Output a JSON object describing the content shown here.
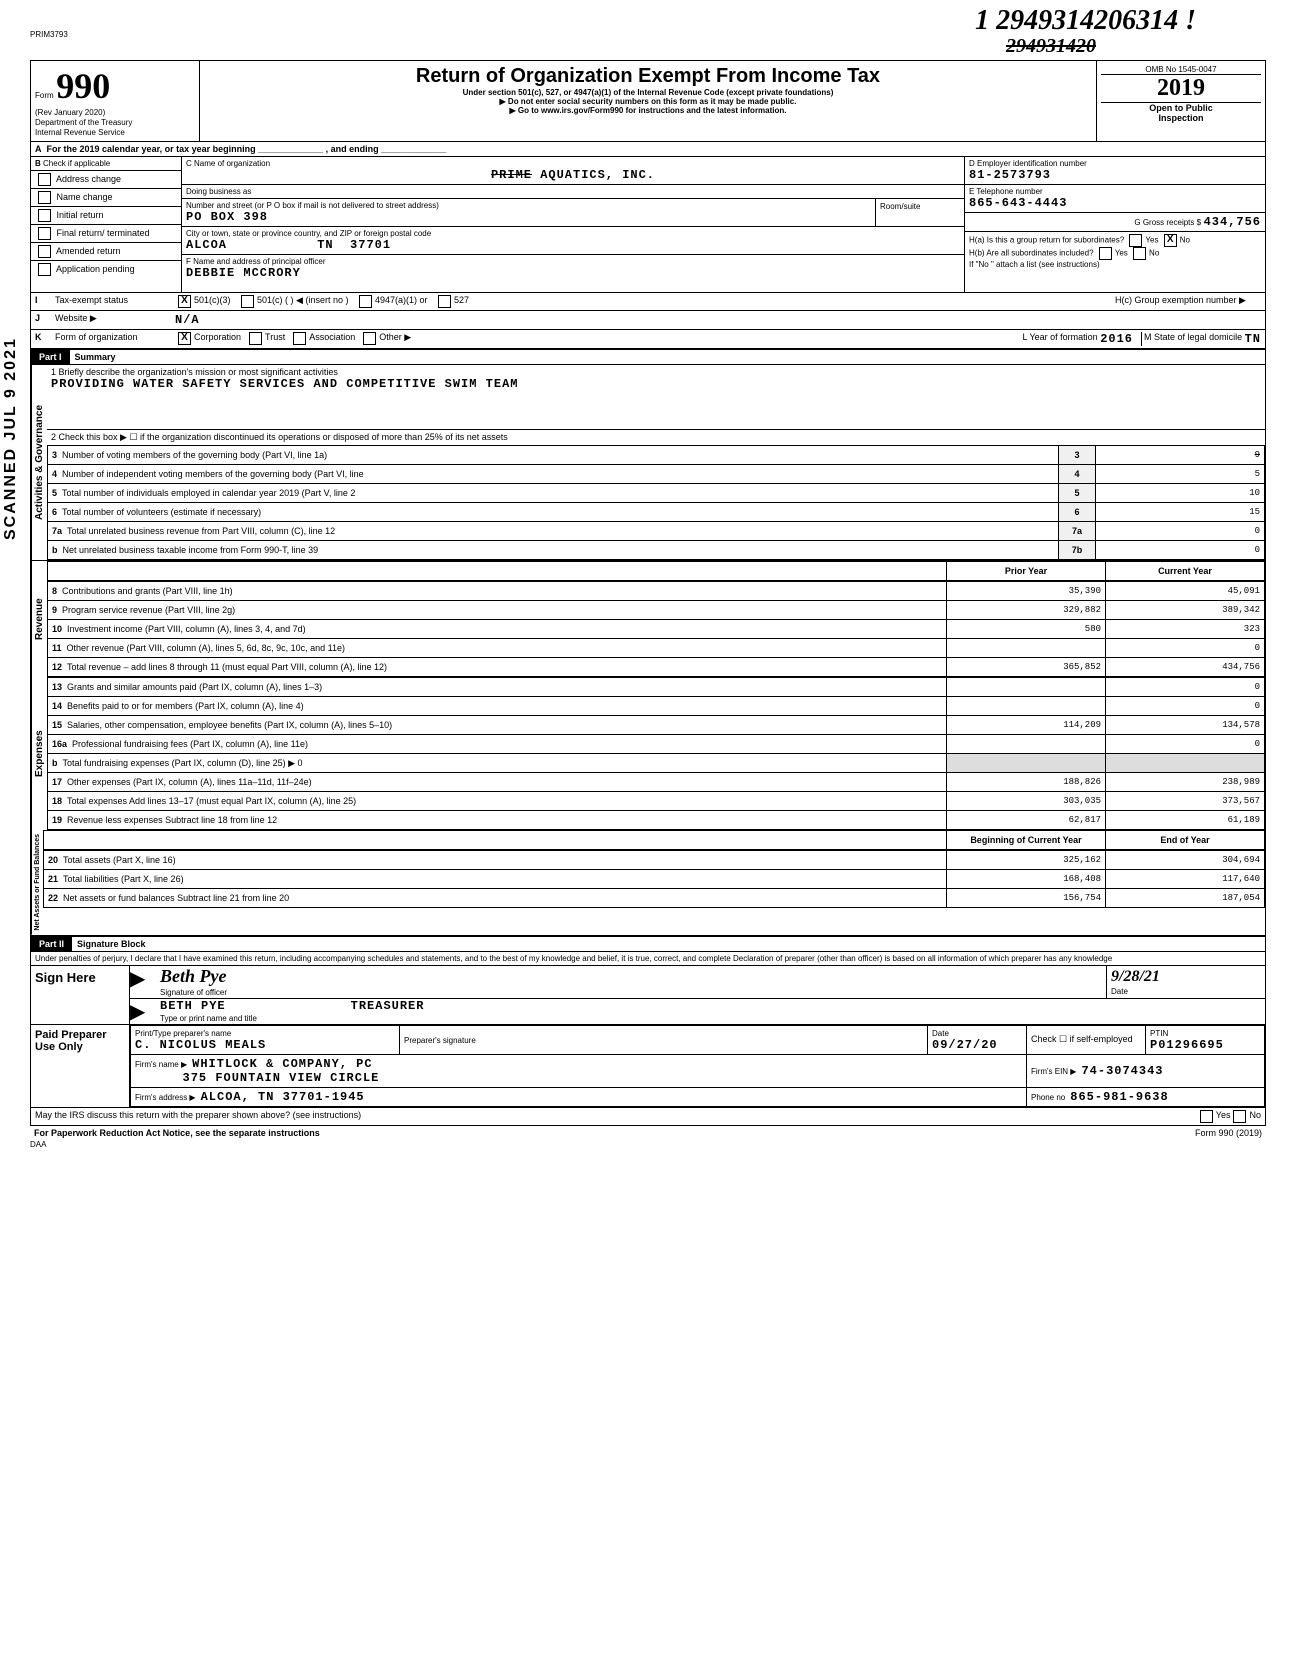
{
  "form_code": "PRIM3793",
  "handwritten_top": "1 2949314206314 !",
  "handwritten_top2": "294931420",
  "scanned_label": "SCANNED JUL 9 2021",
  "header": {
    "form_label": "Form",
    "form_num": "990",
    "rev": "(Rev January 2020)",
    "dept": "Department of the Treasury",
    "irs": "Internal Revenue Service",
    "title": "Return of Organization Exempt From Income Tax",
    "sub1": "Under section 501(c), 527, or 4947(a)(1) of the Internal Revenue Code (except private foundations)",
    "sub2": "▶ Do not enter social security numbers on this form as it may be made public.",
    "sub3": "▶ Go to www.irs.gov/Form990 for instructions and the latest information.",
    "omb": "OMB No 1545-0047",
    "year": "2019",
    "open": "Open to Public",
    "insp": "Inspection"
  },
  "lineA": "For the 2019 calendar year, or tax year beginning _____________ , and ending _____________",
  "B": {
    "label": "Check if applicable",
    "items": [
      "Address change",
      "Name change",
      "Initial return",
      "Final return/ terminated",
      "Amended return",
      "Application pending"
    ]
  },
  "C": {
    "name_lbl": "C Name of organization",
    "name_strike": "PRIME",
    "name": "AQUATICS, INC.",
    "dba_lbl": "Doing business as",
    "street_lbl": "Number and street (or P O box if mail is not delivered to street address)",
    "room_lbl": "Room/suite",
    "street": "PO BOX 398",
    "city_lbl": "City or town, state or province country, and ZIP or foreign postal code",
    "city": "ALCOA",
    "state": "TN",
    "zip": "37701",
    "F_lbl": "F Name and address of principal officer",
    "officer": "DEBBIE MCCRORY"
  },
  "D": {
    "lbl": "D Employer identification number",
    "val": "81-2573793"
  },
  "E": {
    "lbl": "E Telephone number",
    "val": "865-643-4443"
  },
  "G": {
    "lbl": "G Gross receipts $",
    "val": "434,756"
  },
  "H": {
    "a": "H(a) Is this a group return for subordinates?",
    "b": "H(b) Are all subordinates included?",
    "note": "If \"No \" attach a list (see instructions)",
    "c": "H(c) Group exemption number ▶",
    "yes": "Yes",
    "no": "No",
    "checkedNo": "X"
  },
  "I": {
    "lbl": "Tax-exempt status",
    "opts": [
      "501(c)(3)",
      "501(c) (    ) ◀ (insert no )",
      "4947(a)(1) or",
      "527"
    ],
    "checked": "X"
  },
  "J": {
    "lbl": "Website ▶",
    "val": "N/A"
  },
  "K": {
    "lbl": "Form of organization",
    "opts": [
      "Corporation",
      "Trust",
      "Association",
      "Other ▶"
    ],
    "checked": "X",
    "L_lbl": "L  Year of formation",
    "L_val": "2016",
    "M_lbl": "M  State of legal domicile",
    "M_val": "TN"
  },
  "partI": {
    "hdr": "Part I",
    "title": "Summary"
  },
  "gov": {
    "label": "Activities & Governance",
    "l1_lbl": "1  Briefly describe the organization's mission or most significant activities",
    "l1_val": "PROVIDING WATER SAFETY SERVICES AND COMPETITIVE SWIM TEAM",
    "l2": "2  Check this box ▶ ☐ if the organization discontinued its operations or disposed of more than 25% of its net assets",
    "rows": [
      {
        "n": "3",
        "t": "Number of voting members of the governing body (Part VI, line 1a)",
        "c": "3",
        "v": "9",
        "vstrike": true
      },
      {
        "n": "4",
        "t": "Number of independent voting members of the governing body (Part VI, line",
        "c": "4",
        "v": "5"
      },
      {
        "n": "5",
        "t": "Total number of individuals employed in calendar year 2019 (Part V, line 2",
        "c": "5",
        "v": "10"
      },
      {
        "n": "6",
        "t": "Total number of volunteers (estimate if necessary)",
        "c": "6",
        "v": "15"
      },
      {
        "n": "7a",
        "t": "Total unrelated business revenue from Part VIII, column (C), line 12",
        "c": "7a",
        "v": "0"
      },
      {
        "n": "b",
        "t": "Net unrelated business taxable income from Form 990-T, line 39",
        "c": "7b",
        "v": "0"
      }
    ]
  },
  "cols": {
    "py": "Prior Year",
    "cy": "Current Year"
  },
  "rev": {
    "label": "Revenue",
    "rows": [
      {
        "n": "8",
        "t": "Contributions and grants (Part VIII, line 1h)",
        "py": "35,390",
        "cy": "45,091"
      },
      {
        "n": "9",
        "t": "Program service revenue (Part VIII, line 2g)",
        "py": "329,882",
        "cy": "389,342"
      },
      {
        "n": "10",
        "t": "Investment income (Part VIII, column (A), lines 3, 4, and 7d)",
        "py": "580",
        "cy": "323"
      },
      {
        "n": "11",
        "t": "Other revenue (Part VIII, column (A), lines 5, 6d, 8c, 9c, 10c, and 11e)",
        "py": "",
        "cy": "0"
      },
      {
        "n": "12",
        "t": "Total revenue – add lines 8 through 11 (must equal Part VIII, column (A), line 12)",
        "py": "365,852",
        "cy": "434,756"
      }
    ]
  },
  "exp": {
    "label": "Expenses",
    "rows": [
      {
        "n": "13",
        "t": "Grants and similar amounts paid (Part IX, column (A), lines 1–3)",
        "py": "",
        "cy": "0"
      },
      {
        "n": "14",
        "t": "Benefits paid to or for members (Part IX, column (A), line 4)",
        "py": "",
        "cy": "0"
      },
      {
        "n": "15",
        "t": "Salaries, other compensation, employee benefits (Part IX, column (A), lines 5–10)",
        "py": "114,209",
        "cy": "134,578"
      },
      {
        "n": "16a",
        "t": "Professional fundraising fees (Part IX, column (A), line 11e)",
        "py": "",
        "cy": "0"
      },
      {
        "n": "b",
        "t": "Total fundraising expenses (Part IX, column (D), line 25) ▶           0",
        "py": "",
        "cy": "",
        "shade": true
      },
      {
        "n": "17",
        "t": "Other expenses (Part IX, column (A), lines 11a–11d, 11f–24e)",
        "py": "188,826",
        "cy": "238,989"
      },
      {
        "n": "18",
        "t": "Total expenses  Add lines 13–17 (must equal Part IX, column (A), line 25)",
        "py": "303,035",
        "cy": "373,567"
      },
      {
        "n": "19",
        "t": "Revenue less expenses  Subtract line 18 from line 12",
        "py": "62,817",
        "cy": "61,189"
      }
    ]
  },
  "na": {
    "label": "Net Assets or Fund Balances",
    "col1": "Beginning of Current Year",
    "col2": "End of Year",
    "rows": [
      {
        "n": "20",
        "t": "Total assets (Part X, line 16)",
        "py": "325,162",
        "cy": "304,694"
      },
      {
        "n": "21",
        "t": "Total liabilities (Part X, line 26)",
        "py": "168,408",
        "cy": "117,640"
      },
      {
        "n": "22",
        "t": "Net assets or fund balances  Subtract line 21 from line 20",
        "py": "156,754",
        "cy": "187,054"
      }
    ]
  },
  "partII": {
    "hdr": "Part II",
    "title": "Signature Block"
  },
  "perjury": "Under penalties of perjury, I declare that I have examined this return, including accompanying schedules and statements, and to the best of my knowledge and belief, it is true, correct, and complete  Declaration of preparer (other than officer) is based on all information of which preparer has any knowledge",
  "sign": {
    "here": "Sign Here",
    "sig_lbl": "Signature of officer",
    "date_lbl": "Date",
    "date_hand": "9/28/21",
    "name": "BETH PYE",
    "title": "TREASURER",
    "name_lbl": "Type or print name and title"
  },
  "paid": {
    "hdr": "Paid Preparer Use Only",
    "c1": "Print/Type preparer's name",
    "c2": "Preparer's signature",
    "c3": "Date",
    "c4": "Check ☐ if self-employed",
    "c5": "PTIN",
    "name": "C. NICOLUS MEALS",
    "date": "09/27/20",
    "ptin": "P01296695",
    "firm_lbl": "Firm's name    ▶",
    "firm": "WHITLOCK & COMPANY, PC",
    "ein_lbl": "Firm's EIN ▶",
    "ein": "74-3074343",
    "addr_lbl": "Firm's address  ▶",
    "addr1": "375 FOUNTAIN VIEW CIRCLE",
    "addr2": "ALCOA, TN  37701-1945",
    "phone_lbl": "Phone no",
    "phone": "865-981-9638"
  },
  "footer": {
    "discuss": "May the IRS discuss this return with the preparer shown above? (see instructions)",
    "yes": "Yes",
    "no": "No",
    "pra": "For Paperwork Reduction Act Notice, see the separate instructions",
    "daa": "DAA",
    "form": "Form 990 (2019)"
  }
}
